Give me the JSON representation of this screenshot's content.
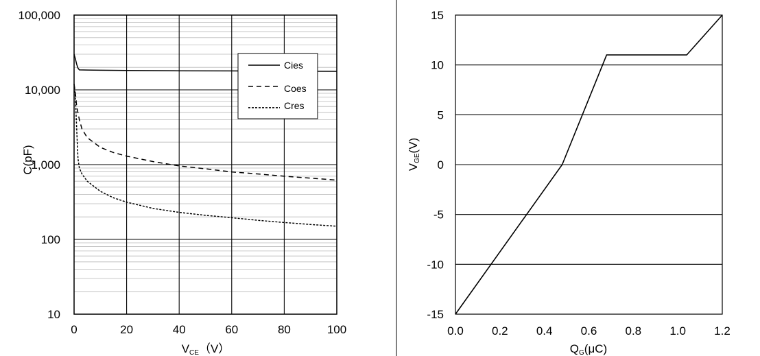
{
  "chart_data": [
    {
      "type": "line",
      "xlabel": "V",
      "xlabel_sub": "CE",
      "xlabel_suffix": "（V）",
      "ylabel": "C(pF)",
      "xlim": [
        0,
        100
      ],
      "ylim": [
        10,
        100000
      ],
      "yscale": "log",
      "grid": true,
      "legend_position": "top-right",
      "x_ticks": [
        0,
        20,
        40,
        60,
        80,
        100
      ],
      "x_tick_labels": [
        "0",
        "20",
        "40",
        "60",
        "80",
        "100"
      ],
      "y_ticks": [
        10,
        100,
        1000,
        10000,
        100000
      ],
      "y_tick_labels": [
        "10",
        "100",
        "1,000",
        "10,000",
        "100,000"
      ],
      "series": [
        {
          "name": "Cies",
          "style": "solid",
          "x": [
            0,
            0.5,
            1,
            1.5,
            2,
            5,
            10,
            20,
            40,
            60,
            80,
            100
          ],
          "y": [
            30000,
            26000,
            22000,
            19500,
            18500,
            18400,
            18300,
            18200,
            18000,
            17900,
            17800,
            17700
          ]
        },
        {
          "name": "Coes",
          "style": "dashed",
          "x": [
            0,
            0.5,
            1,
            2,
            3,
            5,
            10,
            15,
            20,
            30,
            40,
            50,
            60,
            70,
            80,
            90,
            100
          ],
          "y": [
            12000,
            9000,
            6000,
            4000,
            3000,
            2300,
            1700,
            1450,
            1300,
            1100,
            960,
            880,
            800,
            750,
            700,
            660,
            620
          ]
        },
        {
          "name": "Cres",
          "style": "dotted",
          "x": [
            0,
            0.5,
            1,
            1.5,
            2,
            3,
            5,
            10,
            15,
            20,
            30,
            40,
            50,
            60,
            70,
            80,
            90,
            100
          ],
          "y": [
            12000,
            8000,
            3000,
            1200,
            900,
            750,
            600,
            440,
            360,
            315,
            260,
            230,
            210,
            195,
            180,
            168,
            158,
            150
          ]
        }
      ]
    },
    {
      "type": "line",
      "xlabel": "Q",
      "xlabel_sub": "G",
      "xlabel_suffix": "(μC)",
      "ylabel": "V",
      "ylabel_sub": "GE",
      "ylabel_suffix": "(V)",
      "xlim": [
        0,
        1.2
      ],
      "ylim": [
        -15,
        15
      ],
      "grid": true,
      "x_ticks": [
        0,
        0.2,
        0.4,
        0.6,
        0.8,
        1.0,
        1.2
      ],
      "x_tick_labels": [
        "0.0",
        "0.2",
        "0.4",
        "0.6",
        "0.8",
        "1.0",
        "1.2"
      ],
      "y_ticks": [
        -15,
        -10,
        -5,
        0,
        5,
        10,
        15
      ],
      "y_tick_labels": [
        "-15",
        "-10",
        "-5",
        "0",
        "5",
        "10",
        "15"
      ],
      "series": [
        {
          "x": [
            0,
            0.48,
            0.68,
            1.04,
            1.2
          ],
          "y": [
            -15,
            0,
            11,
            11,
            15
          ]
        }
      ]
    }
  ]
}
